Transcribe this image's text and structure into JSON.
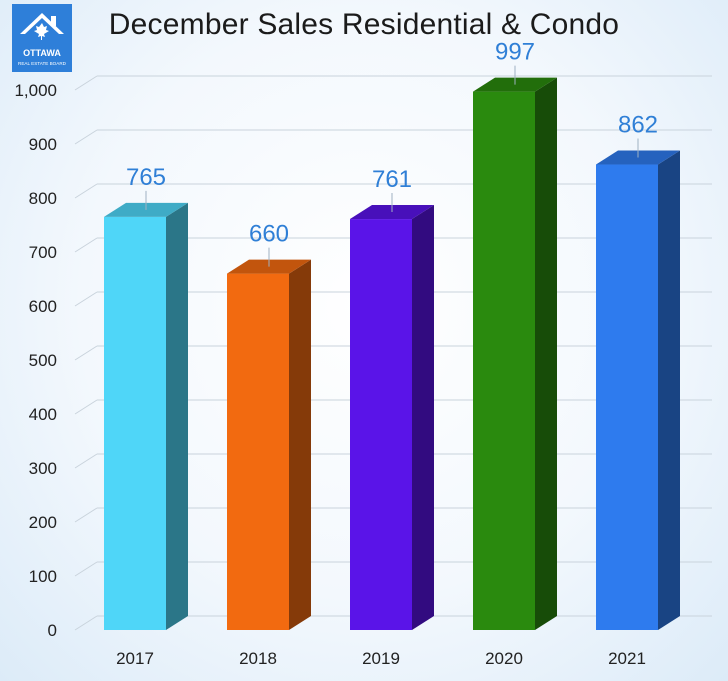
{
  "logo": {
    "line1": "OTTAWA",
    "line2": "REAL ESTATE BOARD",
    "icon": "house-maple-leaf-logo"
  },
  "chart_data": {
    "type": "bar",
    "title": "December Sales Residential & Condo",
    "categories": [
      "2017",
      "2018",
      "2019",
      "2020",
      "2021"
    ],
    "values": [
      765,
      660,
      761,
      997,
      862
    ],
    "data_labels": [
      "765",
      "660",
      "761",
      "997",
      "862"
    ],
    "y_ticks": [
      "0",
      "100",
      "200",
      "300",
      "400",
      "500",
      "600",
      "700",
      "800",
      "900",
      "1,000"
    ],
    "ylim": [
      0,
      1000
    ],
    "grid": true,
    "style": "3d-column",
    "colors": [
      "#4fd6f8",
      "#f26a10",
      "#5a14e8",
      "#2a8a0e",
      "#2e7bee"
    ]
  }
}
